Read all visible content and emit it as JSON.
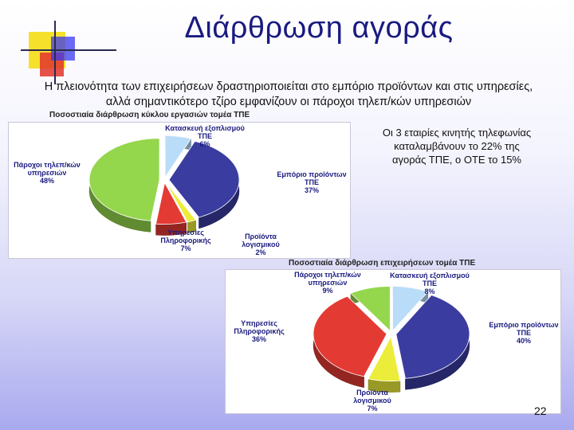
{
  "slide": {
    "title": "Διάρθρωση αγοράς",
    "subtitle_line1": "Η πλειονότητα των επιχειρήσεων δραστηριοποιείται στο εμπόριο προϊόντων και στις υπηρεσίες,",
    "subtitle_line2": "αλλά σημαντικότερο τζίρο εμφανίζουν οι πάροχοι τηλεπ/κών υπηρεσιών",
    "note": "Οι 3 εταιρίες κινητής τηλεφωνίας καταλαμβάνουν το 22% της αγοράς ΤΠΕ, ο ΟΤΕ το 15%",
    "page_number": "22",
    "accent_colors": {
      "title": "#1a1a80",
      "deco_yellow": "#f5e02c",
      "deco_red": "#e0342c",
      "deco_blue": "#3a3af0"
    }
  },
  "chart_data": [
    {
      "type": "pie",
      "title": "Ποσοστιαία διάρθρωση κύκλου εργασιών τομέα ΤΠΕ",
      "slices": [
        {
          "label": "Κατασκευή εξοπλισμού ΤΠΕ",
          "value": 6,
          "display": "6%",
          "color": "#b9dcf8"
        },
        {
          "label": "Εμπόριο προϊόντων ΤΠΕ",
          "value": 37,
          "display": "37%",
          "color": "#3a3ca0"
        },
        {
          "label": "Προϊόντα λογισμικού",
          "value": 2,
          "display": "2%",
          "color": "#ecec3a"
        },
        {
          "label": "Υπηρεσίες Πληροφορικής",
          "value": 7,
          "display": "7%",
          "color": "#e43a34"
        },
        {
          "label": "Πάροχοι τηλεπ/κών υπηρεσιών",
          "value": 48,
          "display": "48%",
          "color": "#94d64c"
        }
      ]
    },
    {
      "type": "pie",
      "title": "Ποσοστιαία διάρθρωση επιχειρήσεων τομέα ΤΠΕ",
      "slices": [
        {
          "label": "Κατασκευή εξοπλισμού ΤΠΕ",
          "value": 8,
          "display": "8%",
          "color": "#b9dcf8"
        },
        {
          "label": "Εμπόριο προϊόντων ΤΠΕ",
          "value": 40,
          "display": "40%",
          "color": "#3a3ca0"
        },
        {
          "label": "Προϊόντα λογισμικού",
          "value": 7,
          "display": "7%",
          "color": "#ecec3a"
        },
        {
          "label": "Υπηρεσίες Πληροφορικής",
          "value": 36,
          "display": "36%",
          "color": "#e43a34"
        },
        {
          "label": "Πάροχοι τηλεπ/κών υπηρεσιών",
          "value": 9,
          "display": "9%",
          "color": "#94d64c"
        }
      ]
    }
  ]
}
